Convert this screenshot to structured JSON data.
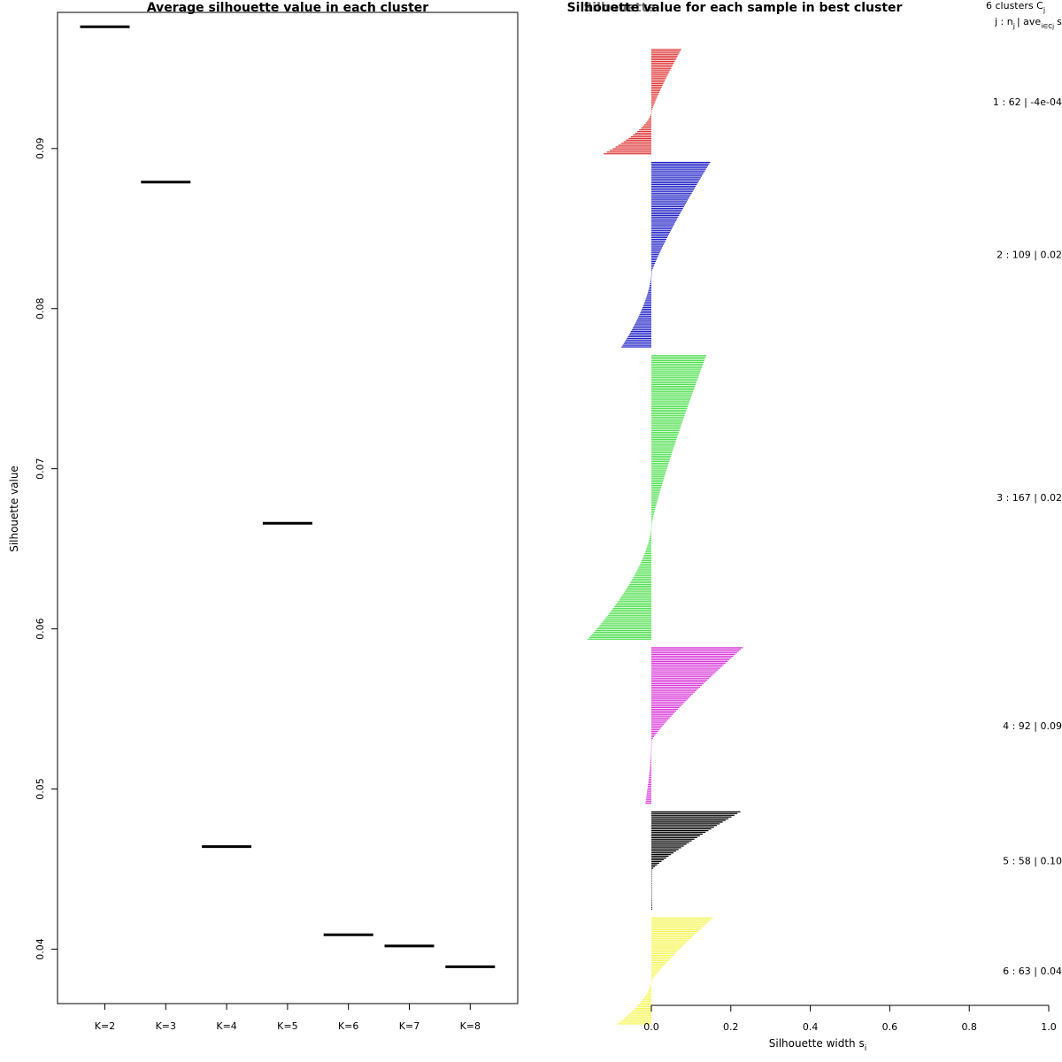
{
  "chart_data": [
    {
      "type": "scatter",
      "title": "Average silhouette value in each cluster",
      "xlabel": "",
      "ylabel": "Silhouette value",
      "categories": [
        "K=2",
        "K=3",
        "K=4",
        "K=5",
        "K=6",
        "K=7",
        "K=8"
      ],
      "values": [
        0.0976,
        0.0879,
        0.0464,
        0.0666,
        0.0409,
        0.0402,
        0.0389
      ],
      "yticks": [
        "0.04",
        "0.05",
        "0.06",
        "0.07",
        "0.08",
        "0.09"
      ],
      "ylim": [
        0.0366,
        0.0985
      ],
      "grid": false,
      "color": "#000000"
    },
    {
      "type": "bar",
      "title": "Silhouette value for each sample in best cluster",
      "overlap_title": "Silhouette",
      "xlabel": "Silhouette width s",
      "xlabel_sub": "i",
      "xticks": [
        "0.0",
        "0.2",
        "0.4",
        "0.6",
        "0.8",
        "1.0"
      ],
      "xlim": [
        0,
        1
      ],
      "legend_header": {
        "line1": "6  clusters  C",
        "line1_sub": "j",
        "line2": "j :  n",
        "line2_sub": "j",
        "line2_mid": "| ave",
        "line2_sub2": "i∈Cj",
        "line2_end": "s"
      },
      "clusters": [
        {
          "id": 1,
          "n": 62,
          "avg": -0.0004,
          "label": "1 :  62  |  -4e-04",
          "color": "#DF3A3A",
          "max": 0.075,
          "min": -0.12
        },
        {
          "id": 2,
          "n": 109,
          "avg": 0.02,
          "label": "2 :  109  |  0.02",
          "color": "#2323C6",
          "max": 0.148,
          "min": -0.075
        },
        {
          "id": 3,
          "n": 167,
          "avg": 0.02,
          "label": "3 :  167  |  0.02",
          "color": "#53E053",
          "max": 0.138,
          "min": -0.16
        },
        {
          "id": 4,
          "n": 92,
          "avg": 0.09,
          "label": "4 :  92  |  0.09",
          "color": "#D93ED9",
          "max": 0.23,
          "min": -0.015
        },
        {
          "id": 5,
          "n": 58,
          "avg": 0.1,
          "label": "5 :  58  |  0.10",
          "color": "#000000",
          "max": 0.224,
          "min": 0.002
        },
        {
          "id": 6,
          "n": 63,
          "avg": 0.04,
          "label": "6 :  63  |  0.04",
          "color": "#F5F55A",
          "max": 0.155,
          "min": -0.085
        }
      ],
      "grid": false
    }
  ]
}
